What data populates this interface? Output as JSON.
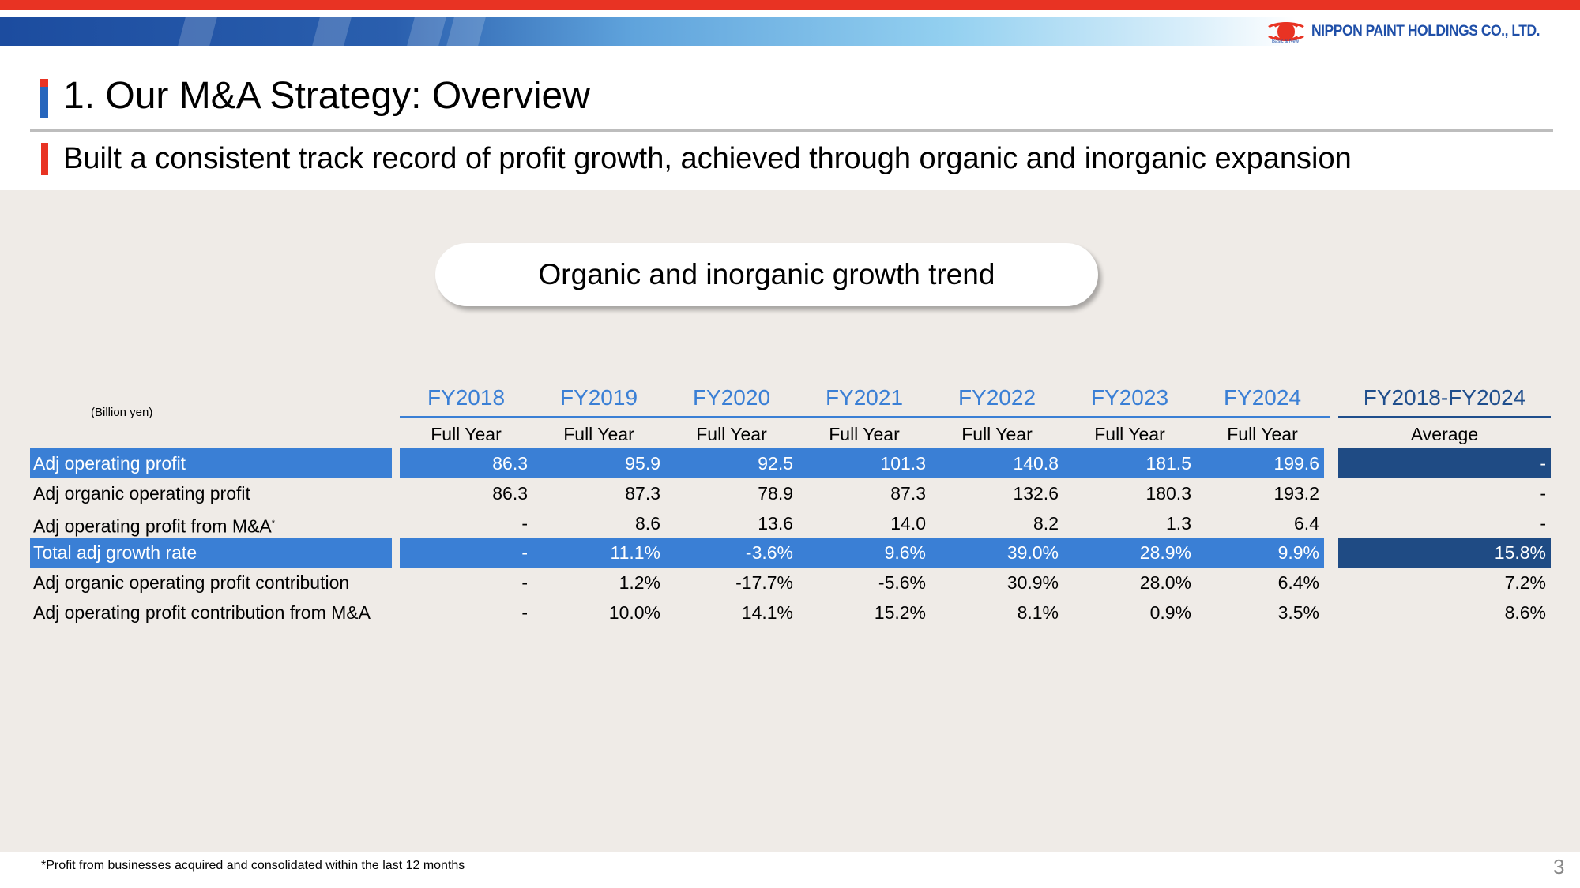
{
  "header": {
    "company": "NIPPON PAINT HOLDINGS CO., LTD.",
    "tagline": "Basic & New",
    "title": "1. Our M&A Strategy: Overview",
    "subtitle": "Built a consistent track record of profit growth, achieved through organic and inorganic expansion"
  },
  "section_title": "Organic and inorganic growth trend",
  "table": {
    "unit": "(Billion yen)",
    "years": [
      "FY2018",
      "FY2019",
      "FY2020",
      "FY2021",
      "FY2022",
      "FY2023",
      "FY2024"
    ],
    "period_label": "Full Year",
    "avg_header": "FY2018-FY2024",
    "avg_sub": "Average",
    "rows": [
      {
        "label": "Adj operating profit",
        "highlight": true,
        "values": [
          "86.3",
          "95.9",
          "92.5",
          "101.3",
          "140.8",
          "181.5",
          "199.6"
        ],
        "avg": "-"
      },
      {
        "label": "Adj organic operating profit",
        "highlight": false,
        "values": [
          "86.3",
          "87.3",
          "78.9",
          "87.3",
          "132.6",
          "180.3",
          "193.2"
        ],
        "avg": "-"
      },
      {
        "label": "Adj operating profit from M&A",
        "note": "*",
        "highlight": false,
        "values": [
          "-",
          "8.6",
          "13.6",
          "14.0",
          "8.2",
          "1.3",
          "6.4"
        ],
        "avg": "-"
      },
      {
        "label": "Total adj growth rate",
        "highlight": true,
        "values": [
          "-",
          "11.1%",
          "-3.6%",
          "9.6%",
          "39.0%",
          "28.9%",
          "9.9%"
        ],
        "avg": "15.8%"
      },
      {
        "label": "Adj organic operating profit contribution",
        "highlight": false,
        "values": [
          "-",
          "1.2%",
          "-17.7%",
          "-5.6%",
          "30.9%",
          "28.0%",
          "6.4%"
        ],
        "avg": "7.2%"
      },
      {
        "label": "Adj operating profit contribution from M&A",
        "highlight": false,
        "values": [
          "-",
          "10.0%",
          "14.1%",
          "15.2%",
          "8.1%",
          "0.9%",
          "3.5%"
        ],
        "avg": "8.6%"
      }
    ]
  },
  "footnote": "*Profit from businesses acquired and consolidated within the last 12 months",
  "page_number": "3",
  "colors": {
    "red": "#e83323",
    "blue": "#3a7fd5",
    "navy": "#1f4b84"
  }
}
